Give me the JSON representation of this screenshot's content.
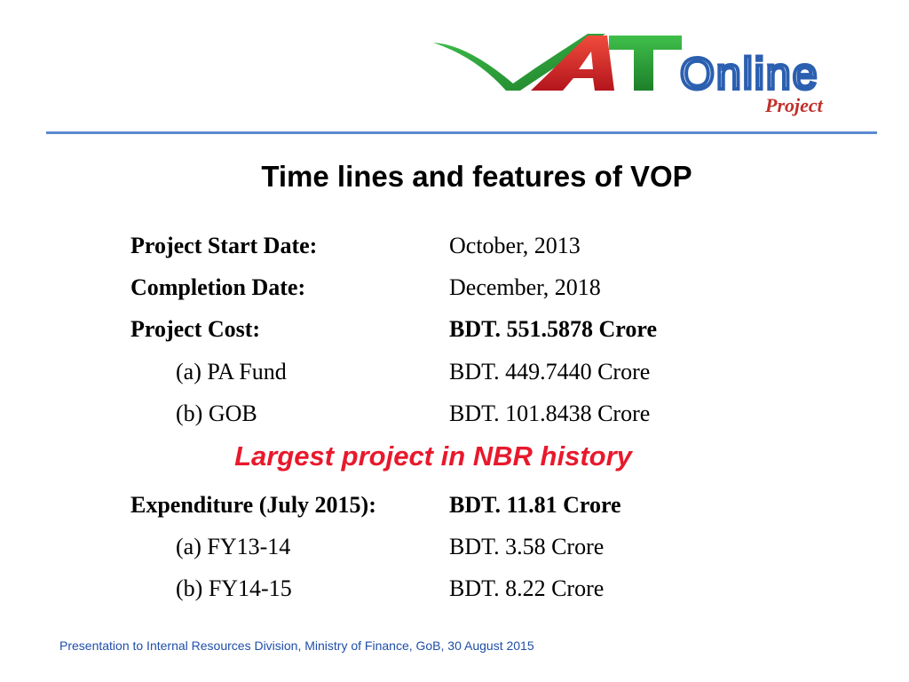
{
  "logo": {
    "letters": "VAT",
    "word": "Online",
    "tag": "Project",
    "colors": {
      "green": "#2e9e3a",
      "red": "#e02a2a",
      "blue": "#2b5fb0",
      "tag": "#c0302a"
    }
  },
  "slide": {
    "title": "Time lines and features of VOP",
    "rows": [
      {
        "label": "Project Start Date:",
        "value": "October, 2013"
      },
      {
        "label": "Completion Date:",
        "value": "December, 2018"
      },
      {
        "label": "Project Cost:",
        "value": "BDT. 551.5878 Crore"
      },
      {
        "label": "(a) PA Fund",
        "value": "BDT. 449.7440 Crore"
      },
      {
        "label": "(b) GOB",
        "value": "BDT. 101.8438 Crore"
      }
    ],
    "highlight": "Largest project in NBR history",
    "expenditure_rows": [
      {
        "label": "Expenditure (July 2015):",
        "value": "BDT. 11.81 Crore"
      },
      {
        "label": "(a) FY13-14",
        "value": "BDT. 3.58 Crore"
      },
      {
        "label": "(b) FY14-15",
        "value": "BDT. 8.22 Crore"
      }
    ],
    "footer": "Presentation to Internal Resources Division, Ministry of Finance, GoB, 30 August 2015"
  }
}
